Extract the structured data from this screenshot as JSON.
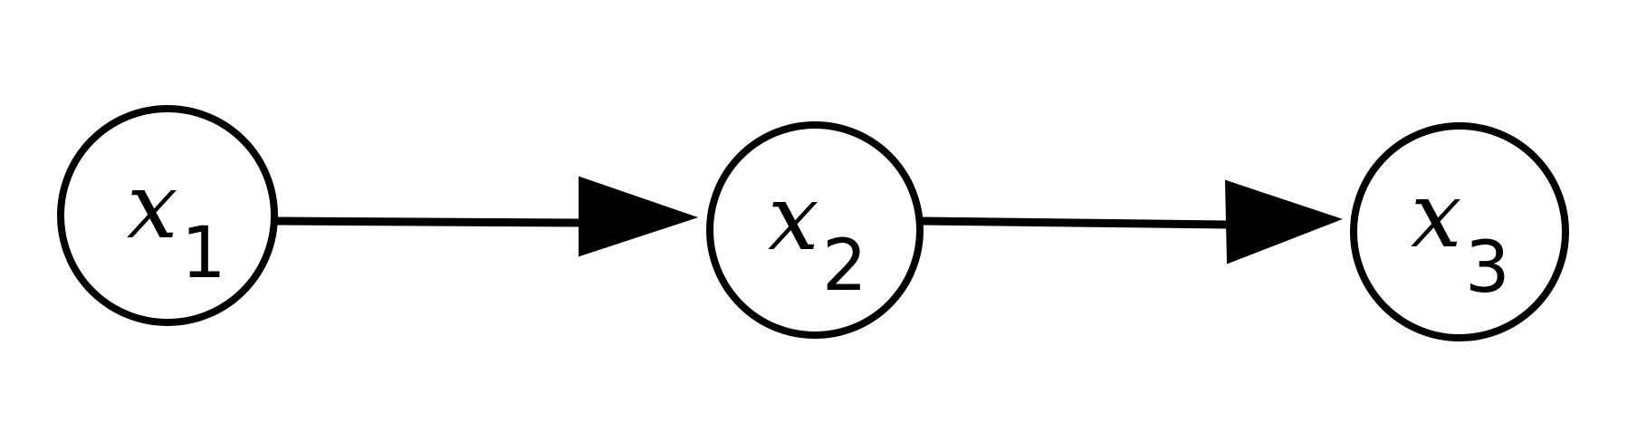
{
  "diagram": {
    "type": "directed-graph",
    "nodes": [
      {
        "id": "x1",
        "letter": "x",
        "subscript": "1"
      },
      {
        "id": "x2",
        "letter": "x",
        "subscript": "2"
      },
      {
        "id": "x3",
        "letter": "x",
        "subscript": "3"
      }
    ],
    "edges": [
      {
        "from": "x1",
        "to": "x2"
      },
      {
        "from": "x2",
        "to": "x3"
      }
    ],
    "colors": {
      "stroke": "#000000",
      "background": "#ffffff"
    }
  }
}
